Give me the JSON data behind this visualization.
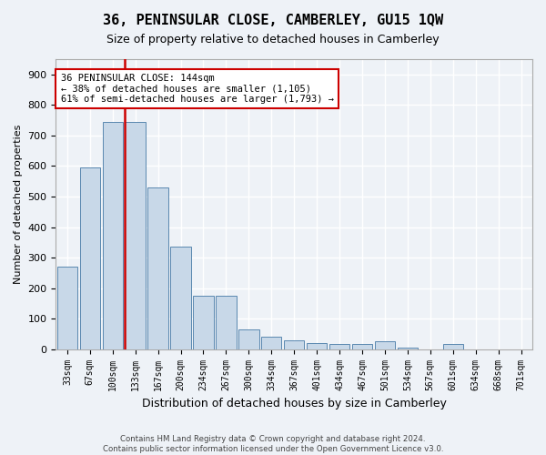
{
  "title": "36, PENINSULAR CLOSE, CAMBERLEY, GU15 1QW",
  "subtitle": "Size of property relative to detached houses in Camberley",
  "xlabel": "Distribution of detached houses by size in Camberley",
  "ylabel": "Number of detached properties",
  "bin_labels": [
    "33sqm",
    "67sqm",
    "100sqm",
    "133sqm",
    "167sqm",
    "200sqm",
    "234sqm",
    "267sqm",
    "300sqm",
    "334sqm",
    "367sqm",
    "401sqm",
    "434sqm",
    "467sqm",
    "501sqm",
    "534sqm",
    "567sqm",
    "601sqm",
    "634sqm",
    "668sqm",
    "701sqm"
  ],
  "bar_heights": [
    270,
    595,
    745,
    745,
    530,
    335,
    175,
    175,
    65,
    40,
    30,
    20,
    18,
    18,
    25,
    5,
    0,
    18,
    0,
    0,
    0
  ],
  "bar_color": "#c8d8e8",
  "bar_edge_color": "#5a88b0",
  "vline_color": "#cc0000",
  "vline_x_index": 3,
  "annotation_text": "36 PENINSULAR CLOSE: 144sqm\n← 38% of detached houses are smaller (1,105)\n61% of semi-detached houses are larger (1,793) →",
  "annotation_box_facecolor": "#ffffff",
  "annotation_box_edgecolor": "#cc0000",
  "ylim": [
    0,
    950
  ],
  "yticks": [
    0,
    100,
    200,
    300,
    400,
    500,
    600,
    700,
    800,
    900
  ],
  "bg_color": "#eef2f7",
  "grid_color": "#ffffff",
  "footer_line1": "Contains HM Land Registry data © Crown copyright and database right 2024.",
  "footer_line2": "Contains public sector information licensed under the Open Government Licence v3.0."
}
